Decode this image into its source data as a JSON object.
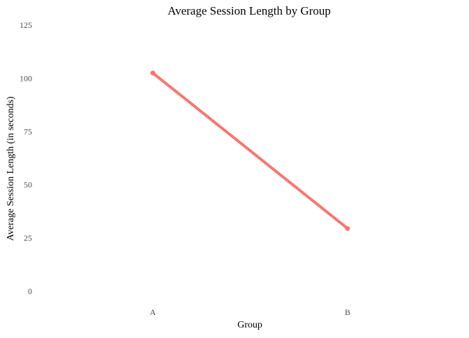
{
  "chart_data": {
    "type": "line",
    "title": "Average Session Length by Group",
    "xlabel": "Group",
    "ylabel": "Average Session Length (in seconds)",
    "categories": [
      "A",
      "B"
    ],
    "series": [
      {
        "values": [
          102.5,
          29.5
        ],
        "color": "#F8766D"
      }
    ],
    "ylim": [
      0,
      125
    ],
    "yticks": [
      0,
      25,
      50,
      75,
      100,
      125
    ],
    "grid": false,
    "legend": "none"
  }
}
